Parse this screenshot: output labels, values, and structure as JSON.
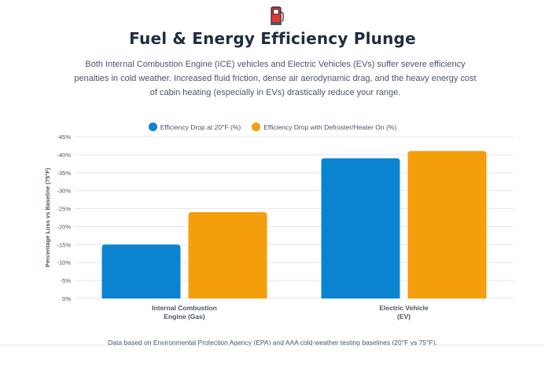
{
  "header": {
    "icon": "fuel-pump-icon",
    "title": "Fuel & Energy Efficiency Plunge",
    "description": "Both Internal Combustion Engine (ICE) vehicles and Electric Vehicles (EVs) suffer severe efficiency penalties in cold weather. Increased fluid friction, dense air aerodynamic drag, and the heavy energy cost of cabin heating (especially in EVs) drastically reduce your range."
  },
  "colors": {
    "series1": "#0a84d0",
    "series2": "#f59e0b",
    "grid": "#e5e7eb",
    "text": "#4a5568"
  },
  "chart_data": {
    "type": "bar",
    "categories": [
      [
        "Internal Combustion",
        "Engine (Gas)"
      ],
      [
        "Electric Vehicle",
        "(EV)"
      ]
    ],
    "series": [
      {
        "name": "Efficiency Drop at 20°F (%)",
        "values": [
          -15,
          -39
        ]
      },
      {
        "name": "Efficiency Drop with Defroster/Heater On (%)",
        "values": [
          -24,
          -41
        ]
      }
    ],
    "ylabel": "Percentage Loss vs Baseline (75°F)",
    "xlabel": "",
    "ylim": [
      0,
      -45
    ],
    "yticks": [
      0,
      -5,
      -10,
      -15,
      -20,
      -25,
      -30,
      -35,
      -40,
      -45
    ],
    "tick_suffix": "%",
    "legend_position": "top-center",
    "grid": true
  },
  "footnote": "Data based on Environmental Protection Agency (EPA) and AAA cold-weather testing baselines (20°F vs 75°F)."
}
